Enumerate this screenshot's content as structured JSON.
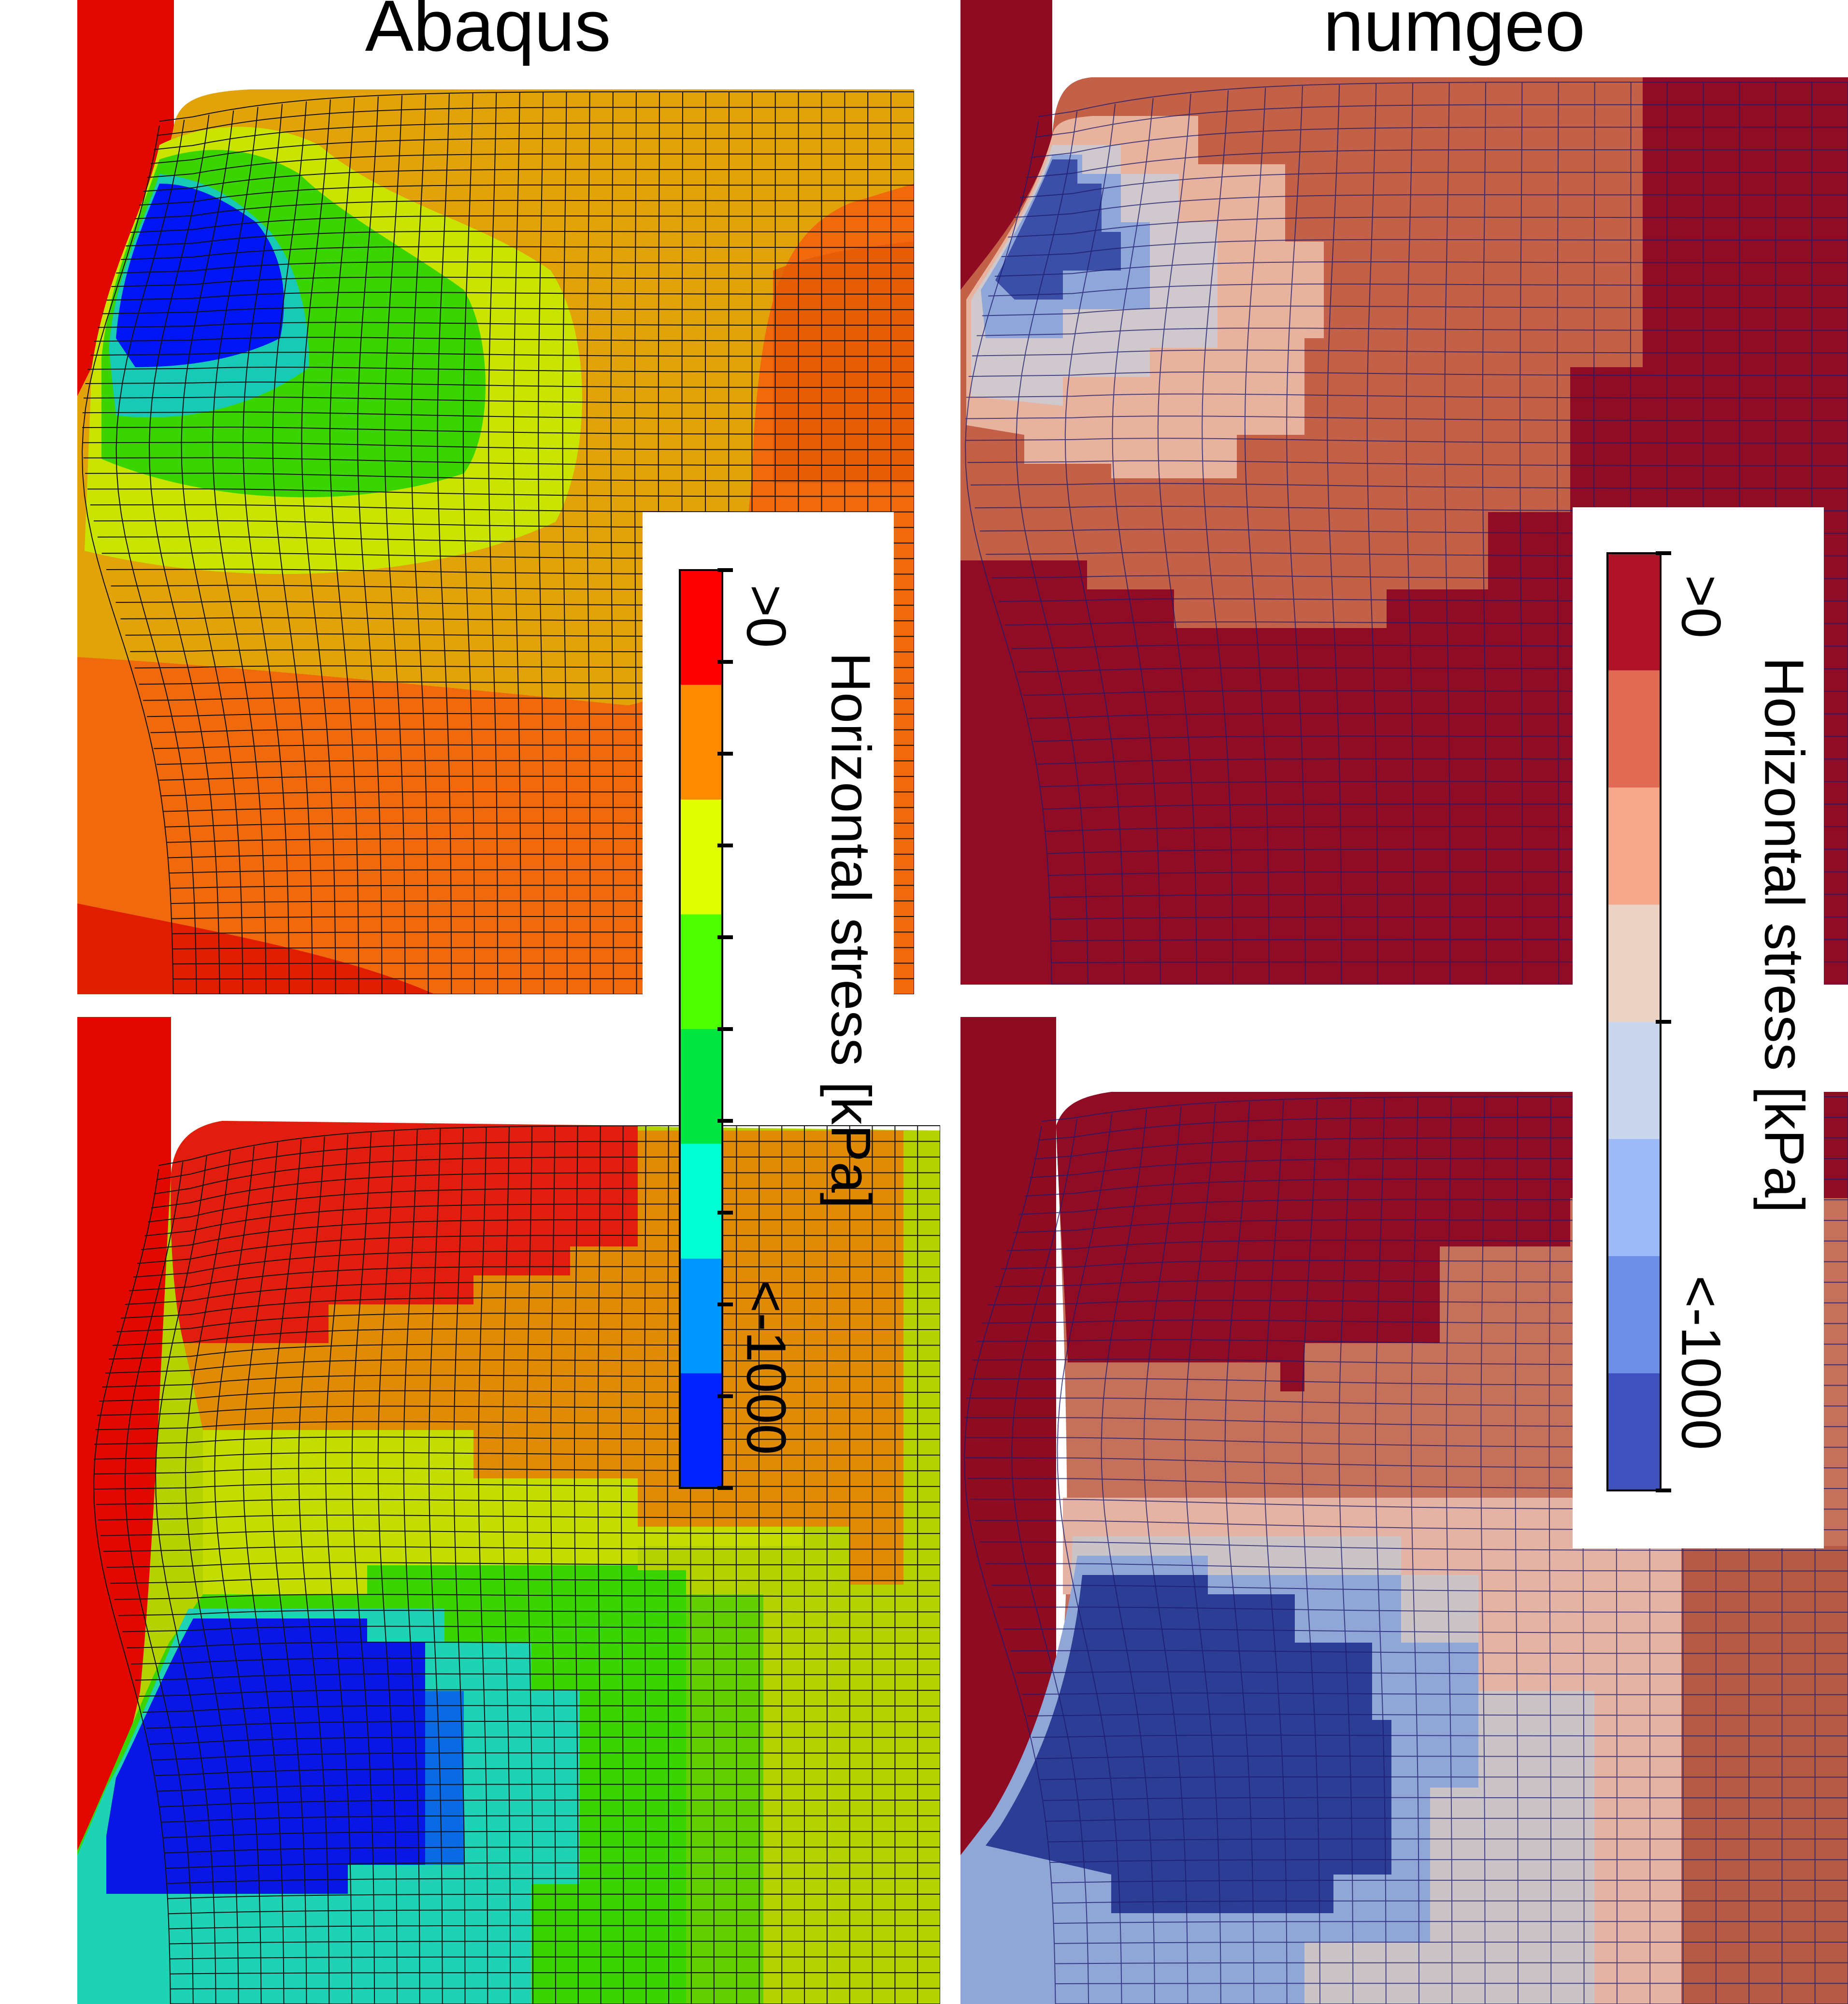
{
  "titles": {
    "left": "Abaqus",
    "right": "numgeo"
  },
  "legend_abaqus": {
    "title": "Horizontal stress [kPa]",
    "max_label": ">0",
    "min_label": "<-1000",
    "colors": [
      "#ff0000",
      "#ff8c00",
      "#dfff00",
      "#4dff00",
      "#00e640",
      "#00ffd2",
      "#0096ff",
      "#0023ff"
    ]
  },
  "legend_numgeo": {
    "title": "Horizontal stress [kPa]",
    "max_label": ">0",
    "min_label": "<-1000",
    "colors": [
      "#b0122a",
      "#e06a54",
      "#f5a98a",
      "#ecd3c6",
      "#c9d6ec",
      "#9dbaf7",
      "#6e8fe6",
      "#3f50bf"
    ]
  },
  "panels": [
    {
      "id": "abaqus-top",
      "scheme": "jet"
    },
    {
      "id": "numgeo-top",
      "scheme": "coolwarm"
    },
    {
      "id": "abaqus-bottom",
      "scheme": "jet"
    },
    {
      "id": "numgeo-bottom",
      "scheme": "coolwarm"
    }
  ]
}
